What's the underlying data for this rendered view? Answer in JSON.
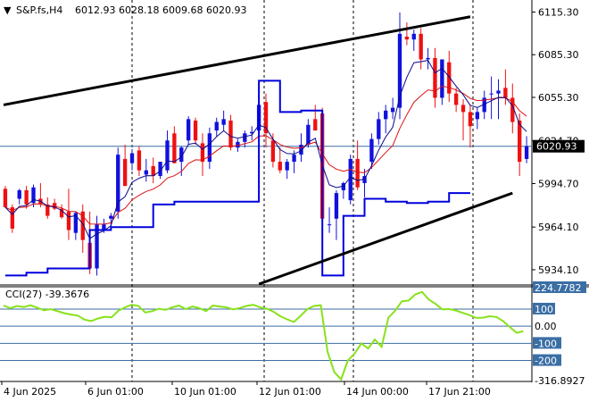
{
  "header": {
    "symbol": "S&P.fs,H4",
    "ohlc": "6012.93 6028.18 6009.68 6020.93"
  },
  "indicator": {
    "label": "CCI(27) -39.3676",
    "max_label": "224.7782",
    "min_label": "-316.8927"
  },
  "colors": {
    "bull": "#1111dd",
    "bear": "#ee1111",
    "ma_fast": "#0a0a8a",
    "ma_slow": "#dd1111",
    "stop": "#0000dd",
    "cci": "#88e21b",
    "trend": "#000000",
    "level_line": "#3a6ea5",
    "price_tag_bg": "#000000"
  },
  "chart_data": [
    {
      "type": "candlestick",
      "price_axis": {
        "ticks": [
          "6115.30",
          "6085.30",
          "6055.30",
          "6024.70",
          "5994.70",
          "5964.10",
          "5934.10"
        ],
        "current": "6020.93",
        "ylim": [
          5924,
          6120
        ]
      },
      "time_axis": {
        "labels": [
          "4 Jun 2025",
          "6 Jun 01:00",
          "10 Jun 01:00",
          "12 Jun 01:00",
          "14 Jun 00:00",
          "17 Jun 21:00"
        ]
      },
      "grid": "vertical dashed at session boundaries",
      "series": [
        {
          "type": "ohlc",
          "candles": [
            [
              5991,
              5993,
              5978,
              5978
            ],
            [
              5978,
              5980,
              5960,
              5963
            ],
            [
              5984,
              5991,
              5980,
              5990
            ],
            [
              5990,
              5993,
              5977,
              5980
            ],
            [
              5981,
              5994,
              5978,
              5992
            ],
            [
              5984,
              5995,
              5978,
              5980
            ],
            [
              5980,
              5985,
              5970,
              5972
            ],
            [
              5981,
              5984,
              5976,
              5977
            ],
            [
              5977,
              5980,
              5970,
              5971
            ],
            [
              5975,
              5991,
              5955,
              5962
            ],
            [
              5960,
              5975,
              5955,
              5974
            ],
            [
              5975,
              5980,
              5946,
              5955
            ],
            [
              5953,
              5975,
              5931,
              5935
            ],
            [
              5935,
              5972,
              5930,
              5966
            ],
            [
              5962,
              5970,
              5960,
              5966
            ],
            [
              5970,
              5974,
              5965,
              5972
            ],
            [
              5975,
              6020,
              5970,
              6015
            ],
            [
              6012,
              6022,
              5993,
              5993
            ],
            [
              6009,
              6019,
              6004,
              6016
            ],
            [
              6018,
              6021,
              6000,
              6004
            ],
            [
              6001,
              6012,
              5996,
              6004
            ],
            [
              6007,
              6013,
              5995,
              6000
            ],
            [
              6000,
              6010,
              5998,
              6010
            ],
            [
              6004,
              6032,
              6002,
              6025
            ],
            [
              6030,
              6035,
              6009,
              6009
            ],
            [
              6010,
              6021,
              6000,
              6020
            ],
            [
              6025,
              6042,
              6022,
              6040
            ],
            [
              6039,
              6041,
              6022,
              6025
            ],
            [
              6023,
              6030,
              6000,
              6010
            ],
            [
              6010,
              6034,
              6005,
              6030
            ],
            [
              6032,
              6041,
              6028,
              6038
            ],
            [
              6036,
              6046,
              6032,
              6040
            ],
            [
              6039,
              6043,
              6018,
              6020
            ],
            [
              6020,
              6026,
              6017,
              6024
            ],
            [
              6024,
              6032,
              6020,
              6030
            ],
            [
              6030,
              6035,
              6025,
              6031
            ],
            [
              6032,
              6060,
              6028,
              6050
            ],
            [
              6052,
              6058,
              6020,
              6030
            ],
            [
              6025,
              6030,
              6006,
              6010
            ],
            [
              6010,
              6020,
              6002,
              6004
            ],
            [
              6004,
              6012,
              5998,
              6010
            ],
            [
              6010,
              6018,
              6002,
              6015
            ],
            [
              6015,
              6030,
              6010,
              6022
            ],
            [
              6022,
              6040,
              6020,
              6036
            ],
            [
              6040,
              6050,
              6032,
              6032
            ],
            [
              6044,
              6048,
              5962,
              5970
            ],
            [
              5966,
              5978,
              5960,
              5966
            ],
            [
              5970,
              5990,
              5955,
              5988
            ],
            [
              5990,
              5996,
              5984,
              5995
            ],
            [
              5983,
              6015,
              5980,
              6012
            ],
            [
              6012,
              6025,
              5990,
              5992
            ],
            [
              5995,
              6005,
              5985,
              6000
            ],
            [
              6010,
              6030,
              6005,
              6026
            ],
            [
              6026,
              6045,
              6022,
              6040
            ],
            [
              6040,
              6050,
              6030,
              6046
            ],
            [
              6045,
              6055,
              6040,
              6048
            ],
            [
              6048,
              6115,
              6040,
              6100
            ],
            [
              6098,
              6108,
              6092,
              6096
            ],
            [
              6096,
              6103,
              6088,
              6100
            ],
            [
              6100,
              6104,
              6075,
              6082
            ],
            [
              6082,
              6090,
              6075,
              6083
            ],
            [
              6083,
              6090,
              6048,
              6055
            ],
            [
              6055,
              6082,
              6050,
              6082
            ],
            [
              6080,
              6088,
              6052,
              6058
            ],
            [
              6058,
              6062,
              6045,
              6050
            ],
            [
              6050,
              6054,
              6025,
              6045
            ],
            [
              6045,
              6050,
              6020,
              6035
            ],
            [
              6040,
              6048,
              6033,
              6045
            ],
            [
              6045,
              6060,
              6040,
              6055
            ],
            [
              6058,
              6070,
              6040,
              6058
            ],
            [
              6058,
              6068,
              6040,
              6060
            ],
            [
              6062,
              6075,
              6050,
              6055
            ],
            [
              6055,
              6065,
              6030,
              6038
            ],
            [
              6039,
              6044,
              6000,
              6010
            ],
            [
              6012,
              6028,
              6009,
              6021
            ]
          ]
        },
        {
          "type": "stop_line",
          "values": [
            5930,
            5932,
            5935,
            5935,
            5962,
            5964,
            5964,
            5980,
            5982,
            5982,
            5982,
            5982,
            6067,
            6045,
            6046,
            5930,
            5972,
            5984,
            5982,
            5981,
            5982,
            5988
          ]
        }
      ]
    },
    {
      "type": "line",
      "name": "CCI(27)",
      "ylim": [
        -316.8927,
        224.7782
      ],
      "levels": [
        224.7782,
        100,
        0.0,
        -100,
        -200,
        -316.8927
      ],
      "level_labels": [
        "224.7782",
        "100",
        "0.00",
        "-100",
        "-200",
        "-316.8927"
      ],
      "values": [
        120,
        105,
        118,
        112,
        122,
        108,
        93,
        100,
        88,
        76,
        68,
        62,
        38,
        30,
        45,
        55,
        52,
        90,
        110,
        125,
        118,
        80,
        88,
        102,
        95,
        110,
        120,
        100,
        115,
        105,
        88,
        120,
        115,
        110,
        98,
        106,
        118,
        125,
        110,
        102,
        84,
        58,
        40,
        25,
        60,
        100,
        118,
        122,
        -150,
        -268,
        -310,
        -200,
        -160,
        -100,
        -130,
        -78,
        -120,
        50,
        90,
        145,
        150,
        185,
        200,
        155,
        130,
        98,
        100,
        92,
        78,
        65,
        48,
        50,
        58,
        54,
        30,
        -5,
        -38,
        -30
      ]
    }
  ]
}
